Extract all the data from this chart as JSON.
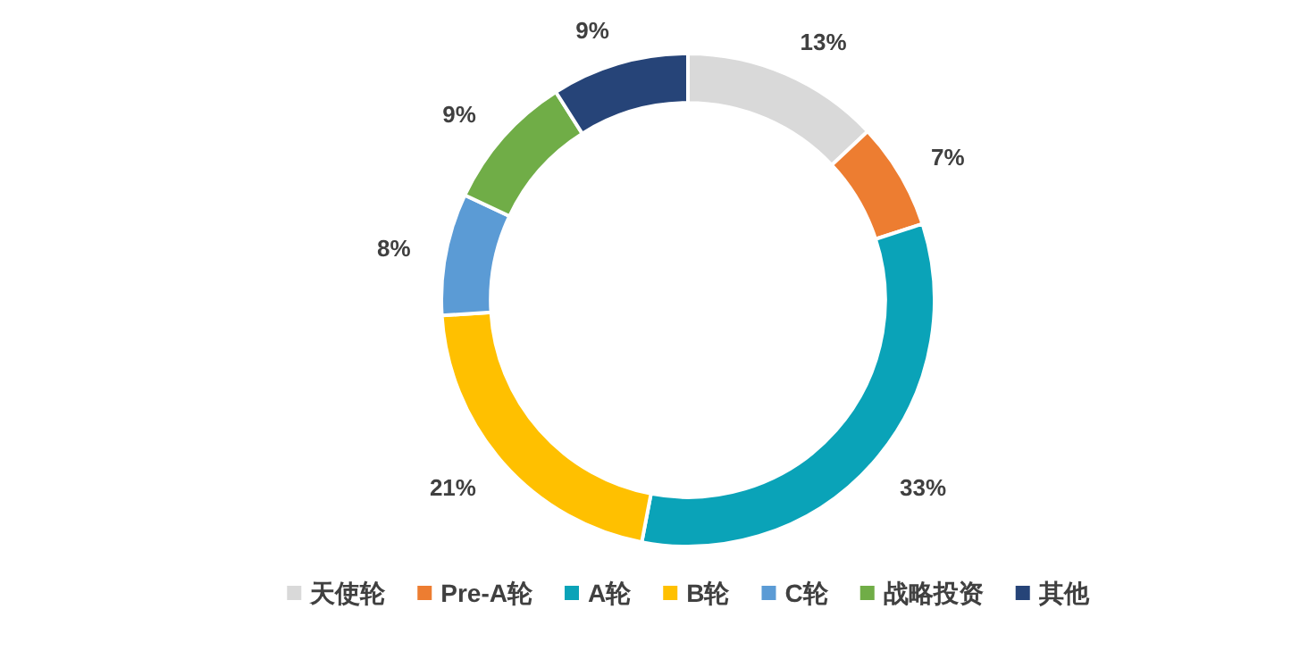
{
  "chart_data": {
    "type": "donut",
    "categories": [
      "天使轮",
      "Pre-A轮",
      "A轮",
      "B轮",
      "C轮",
      "战略投资",
      "其他"
    ],
    "values": [
      13,
      7,
      33,
      21,
      8,
      9,
      9
    ],
    "value_labels": [
      "13%",
      "7%",
      "33%",
      "21%",
      "8%",
      "9%",
      "9%"
    ],
    "colors": [
      "#d9d9d9",
      "#ed7d31",
      "#0aa3b8",
      "#ffc000",
      "#5b9bd5",
      "#70ad47",
      "#264478"
    ],
    "legend": "bottom"
  }
}
